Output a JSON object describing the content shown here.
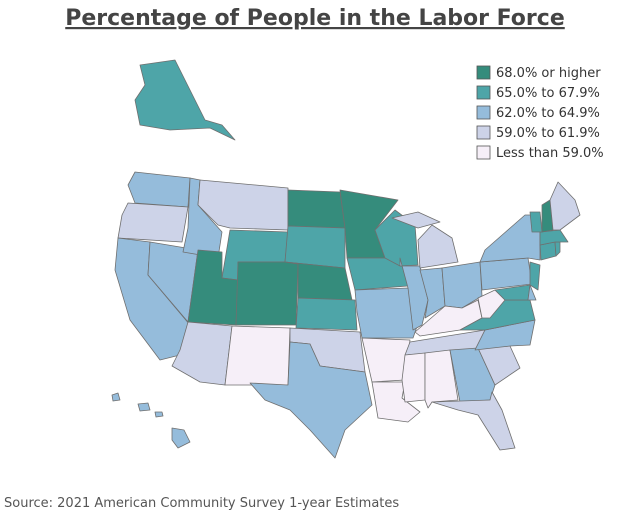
{
  "title": "Percentage of People in the Labor Force",
  "legend": {
    "items": [
      {
        "label": "68.0% or higher",
        "color": "#358c7c"
      },
      {
        "label": "65.0% to 67.9%",
        "color": "#4ea5a8"
      },
      {
        "label": "62.0% to 64.9%",
        "color": "#95bcdb"
      },
      {
        "label": "59.0% to 61.9%",
        "color": "#cdd3e8"
      },
      {
        "label": "Less than 59.0%",
        "color": "#f6eff8"
      }
    ]
  },
  "source": "Source: 2021 American Community Survey 1-year Estimates"
}
